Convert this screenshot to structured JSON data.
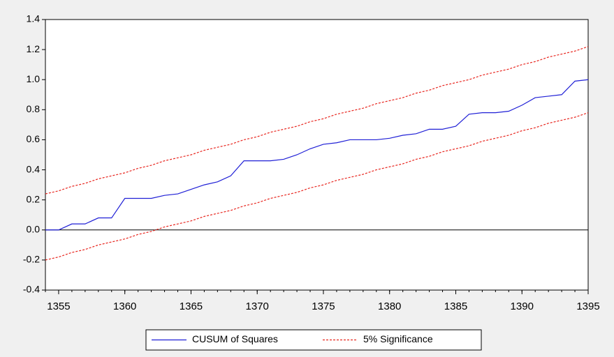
{
  "chart_data": {
    "type": "line",
    "x": [
      1354,
      1355,
      1356,
      1357,
      1358,
      1359,
      1360,
      1361,
      1362,
      1363,
      1364,
      1365,
      1366,
      1367,
      1368,
      1369,
      1370,
      1371,
      1372,
      1373,
      1374,
      1375,
      1376,
      1377,
      1378,
      1379,
      1380,
      1381,
      1382,
      1383,
      1384,
      1385,
      1386,
      1387,
      1388,
      1389,
      1390,
      1391,
      1392,
      1393,
      1394,
      1395
    ],
    "series": [
      {
        "name": "CUSUM of Squares",
        "color": "#1f1fd6",
        "dash": false,
        "values": [
          0,
          0,
          0.04,
          0.04,
          0.08,
          0.08,
          0.21,
          0.21,
          0.21,
          0.23,
          0.24,
          0.27,
          0.3,
          0.32,
          0.36,
          0.46,
          0.46,
          0.46,
          0.47,
          0.5,
          0.54,
          0.57,
          0.58,
          0.6,
          0.6,
          0.6,
          0.61,
          0.63,
          0.64,
          0.67,
          0.67,
          0.69,
          0.77,
          0.78,
          0.78,
          0.79,
          0.83,
          0.88,
          0.89,
          0.9,
          0.99,
          1.0
        ]
      },
      {
        "name": "5% Significance",
        "color": "#e8261f",
        "dash": true,
        "values": [
          0.24,
          0.26,
          0.29,
          0.31,
          0.34,
          0.36,
          0.38,
          0.41,
          0.43,
          0.46,
          0.48,
          0.5,
          0.53,
          0.55,
          0.57,
          0.6,
          0.62,
          0.65,
          0.67,
          0.69,
          0.72,
          0.74,
          0.77,
          0.79,
          0.81,
          0.84,
          0.86,
          0.88,
          0.91,
          0.93,
          0.96,
          0.98,
          1.0,
          1.03,
          1.05,
          1.07,
          1.1,
          1.12,
          1.15,
          1.17,
          1.19,
          1.22
        ]
      },
      {
        "color": "#e8261f",
        "dash": true,
        "values": [
          -0.2,
          -0.18,
          -0.15,
          -0.13,
          -0.1,
          -0.08,
          -0.06,
          -0.03,
          -0.01,
          0.02,
          0.04,
          0.06,
          0.09,
          0.11,
          0.13,
          0.16,
          0.18,
          0.21,
          0.23,
          0.25,
          0.28,
          0.3,
          0.33,
          0.35,
          0.37,
          0.4,
          0.42,
          0.44,
          0.47,
          0.49,
          0.52,
          0.54,
          0.56,
          0.59,
          0.61,
          0.63,
          0.66,
          0.68,
          0.71,
          0.73,
          0.75,
          0.78
        ]
      }
    ],
    "xlim": [
      1354,
      1395
    ],
    "xticks": [
      1355,
      1360,
      1365,
      1370,
      1375,
      1380,
      1385,
      1390,
      1395
    ],
    "ylim": [
      -0.4,
      1.4
    ],
    "yticks": [
      -0.4,
      -0.2,
      {
        "value": 0,
        "label": "0.0"
      },
      0.2,
      0.4,
      0.6,
      0.8,
      {
        "value": 1,
        "label": "1.0"
      },
      1.2,
      1.4
    ],
    "zero_line": true,
    "legend": "bottom"
  }
}
